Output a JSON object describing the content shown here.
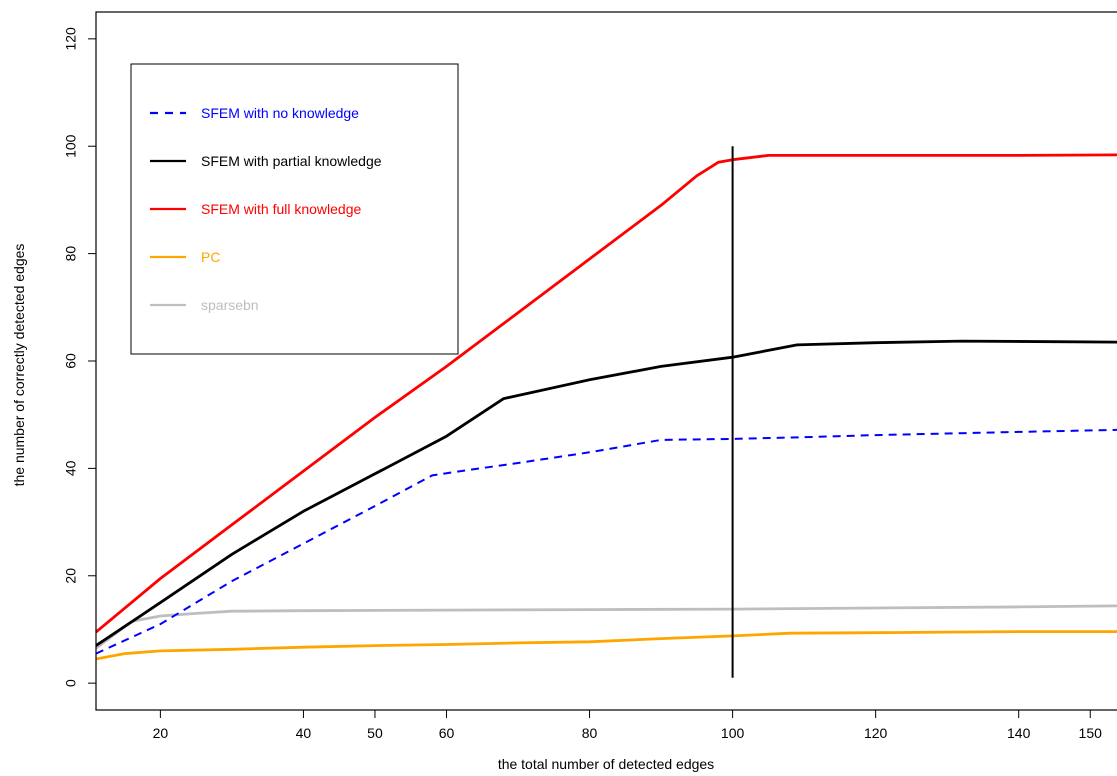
{
  "chart_data": {
    "type": "line",
    "xlabel": "the total number of detected edges",
    "ylabel": "the number of correctly detected edges",
    "xlim": [
      11,
      155
    ],
    "ylim": [
      -5,
      125
    ],
    "x_ticks": [
      20,
      40,
      50,
      60,
      80,
      100,
      120,
      140,
      150
    ],
    "y_ticks": [
      0,
      20,
      40,
      60,
      80,
      100,
      120
    ],
    "vline": {
      "x": 100,
      "y_range": [
        1,
        100
      ]
    },
    "legend_position": "top-left",
    "series": [
      {
        "name": "SFEM with no knowledge",
        "color": "#0000FF",
        "dash": true,
        "points": [
          [
            11,
            5.5
          ],
          [
            20,
            11
          ],
          [
            30,
            19
          ],
          [
            40,
            26
          ],
          [
            50,
            33
          ],
          [
            58,
            38.7
          ],
          [
            62,
            39.5
          ],
          [
            70,
            41
          ],
          [
            80,
            43
          ],
          [
            90,
            45.3
          ],
          [
            100,
            45.5
          ],
          [
            110,
            45.8
          ],
          [
            120,
            46.2
          ],
          [
            130,
            46.5
          ],
          [
            140,
            46.8
          ],
          [
            155,
            47.2
          ]
        ]
      },
      {
        "name": "SFEM with partial knowledge",
        "color": "#000000",
        "dash": false,
        "points": [
          [
            11,
            7
          ],
          [
            20,
            15
          ],
          [
            30,
            24
          ],
          [
            40,
            32
          ],
          [
            50,
            39
          ],
          [
            60,
            46
          ],
          [
            68,
            53
          ],
          [
            80,
            56.5
          ],
          [
            90,
            59
          ],
          [
            100,
            60.7
          ],
          [
            109,
            63
          ],
          [
            120,
            63.4
          ],
          [
            132,
            63.7
          ],
          [
            145,
            63.6
          ],
          [
            155,
            63.5
          ]
        ]
      },
      {
        "name": "SFEM with full knowledge",
        "color": "#FF0000",
        "dash": false,
        "points": [
          [
            11,
            9.5
          ],
          [
            20,
            19.5
          ],
          [
            30,
            29.5
          ],
          [
            40,
            39.5
          ],
          [
            50,
            49.5
          ],
          [
            60,
            59
          ],
          [
            70,
            69
          ],
          [
            80,
            79
          ],
          [
            90,
            89
          ],
          [
            95,
            94.5
          ],
          [
            98,
            97
          ],
          [
            100,
            97.5
          ],
          [
            105,
            98.3
          ],
          [
            120,
            98.3
          ],
          [
            140,
            98.3
          ],
          [
            155,
            98.4
          ]
        ]
      },
      {
        "name": "PC",
        "color": "#FFA500",
        "dash": false,
        "points": [
          [
            11,
            4.5
          ],
          [
            15,
            5.5
          ],
          [
            20,
            6
          ],
          [
            30,
            6.3
          ],
          [
            40,
            6.7
          ],
          [
            50,
            7
          ],
          [
            60,
            7.2
          ],
          [
            70,
            7.5
          ],
          [
            80,
            7.7
          ],
          [
            90,
            8.3
          ],
          [
            100,
            8.8
          ],
          [
            108,
            9.3
          ],
          [
            120,
            9.4
          ],
          [
            130,
            9.5
          ],
          [
            140,
            9.6
          ],
          [
            155,
            9.6
          ]
        ]
      },
      {
        "name": "sparsebn",
        "color": "#BEBEBE",
        "dash": false,
        "points": [
          [
            11,
            6.5
          ],
          [
            16,
            11.5
          ],
          [
            20,
            12.5
          ],
          [
            25,
            13
          ],
          [
            30,
            13.4
          ],
          [
            40,
            13.5
          ],
          [
            60,
            13.6
          ],
          [
            80,
            13.7
          ],
          [
            100,
            13.8
          ],
          [
            120,
            14
          ],
          [
            140,
            14.2
          ],
          [
            155,
            14.4
          ]
        ]
      }
    ]
  }
}
